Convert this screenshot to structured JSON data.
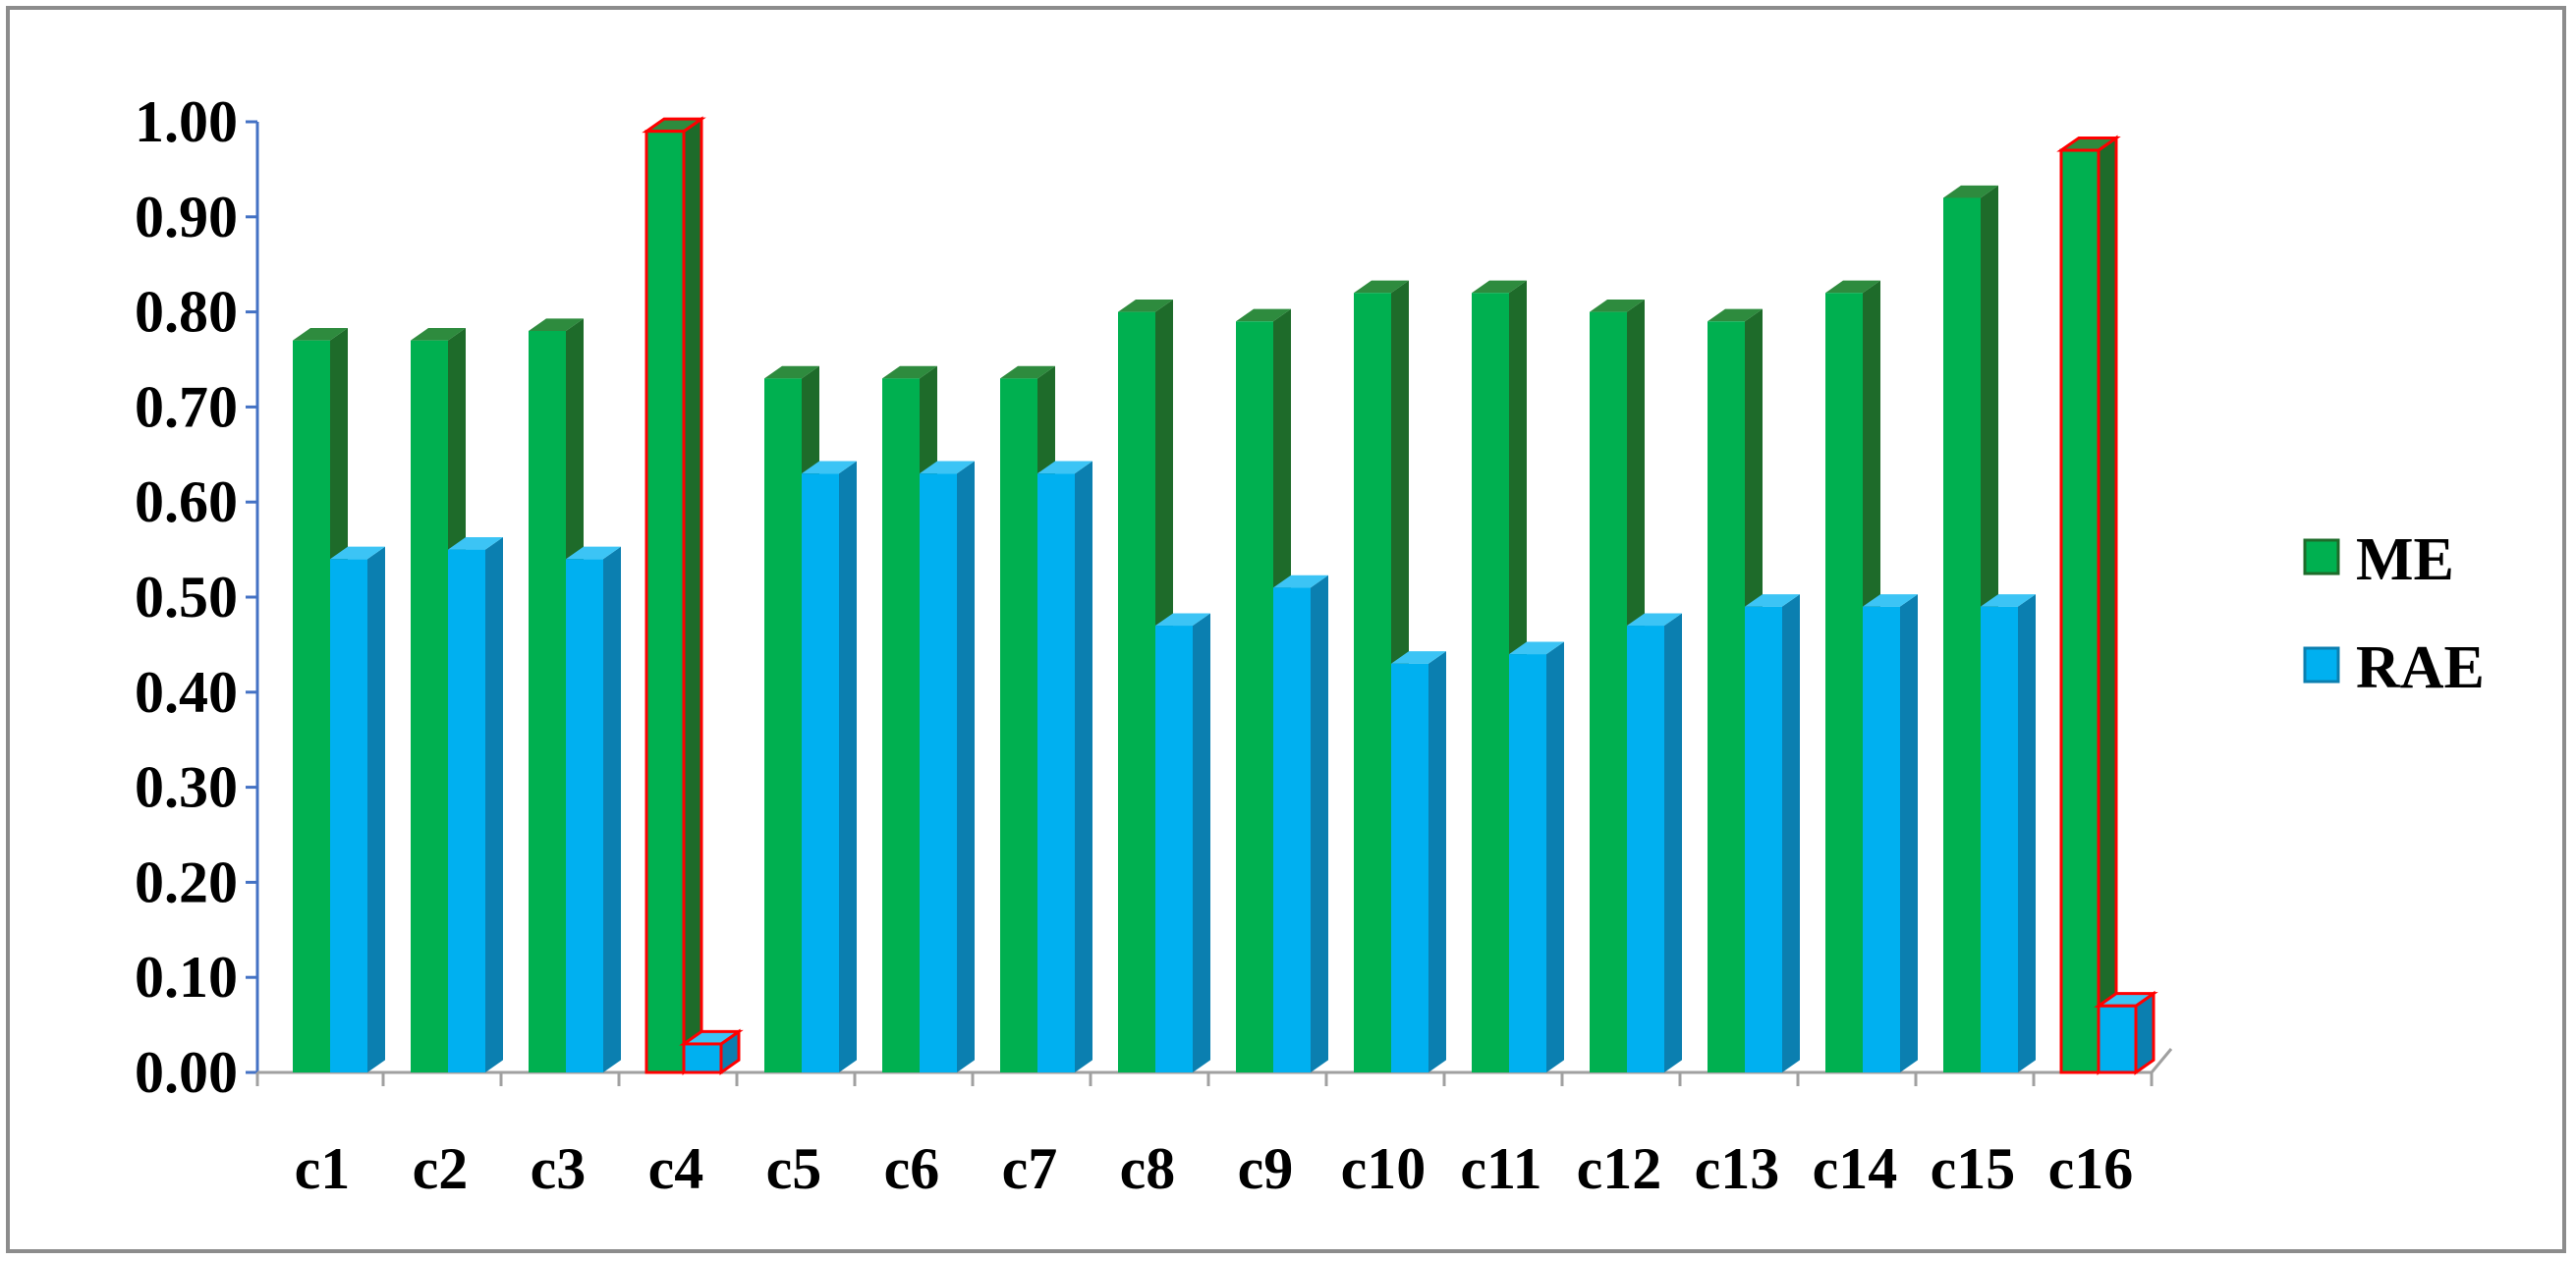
{
  "chart_data": {
    "type": "bar",
    "style": "3d-clustered-column",
    "categories": [
      "c1",
      "c2",
      "c3",
      "c4",
      "c5",
      "c6",
      "c7",
      "c8",
      "c9",
      "c10",
      "c11",
      "c12",
      "c13",
      "c14",
      "c15",
      "c16"
    ],
    "series": [
      {
        "name": "ME",
        "values": [
          0.77,
          0.77,
          0.78,
          0.99,
          0.73,
          0.73,
          0.73,
          0.8,
          0.79,
          0.82,
          0.82,
          0.8,
          0.79,
          0.82,
          0.92,
          0.97
        ]
      },
      {
        "name": "RAE",
        "values": [
          0.54,
          0.55,
          0.54,
          0.03,
          0.63,
          0.63,
          0.63,
          0.47,
          0.51,
          0.43,
          0.44,
          0.47,
          0.49,
          0.49,
          0.49,
          0.07
        ]
      }
    ],
    "highlighted_categories": [
      "c4",
      "c16"
    ],
    "highlight_color": "#ff0000",
    "colors": {
      "ME": "#00b050",
      "RAE": "#00b0f0",
      "ME_side": "#1e6b2a",
      "RAE_side": "#0b7fb0",
      "axis": "#4472c4"
    },
    "ylim": [
      0,
      1
    ],
    "yticks": [
      "0.00",
      "0.10",
      "0.20",
      "0.30",
      "0.40",
      "0.50",
      "0.60",
      "0.70",
      "0.80",
      "0.90",
      "1.00"
    ],
    "legend_position": "right",
    "grid": false,
    "title": "",
    "xlabel": "",
    "ylabel": ""
  }
}
